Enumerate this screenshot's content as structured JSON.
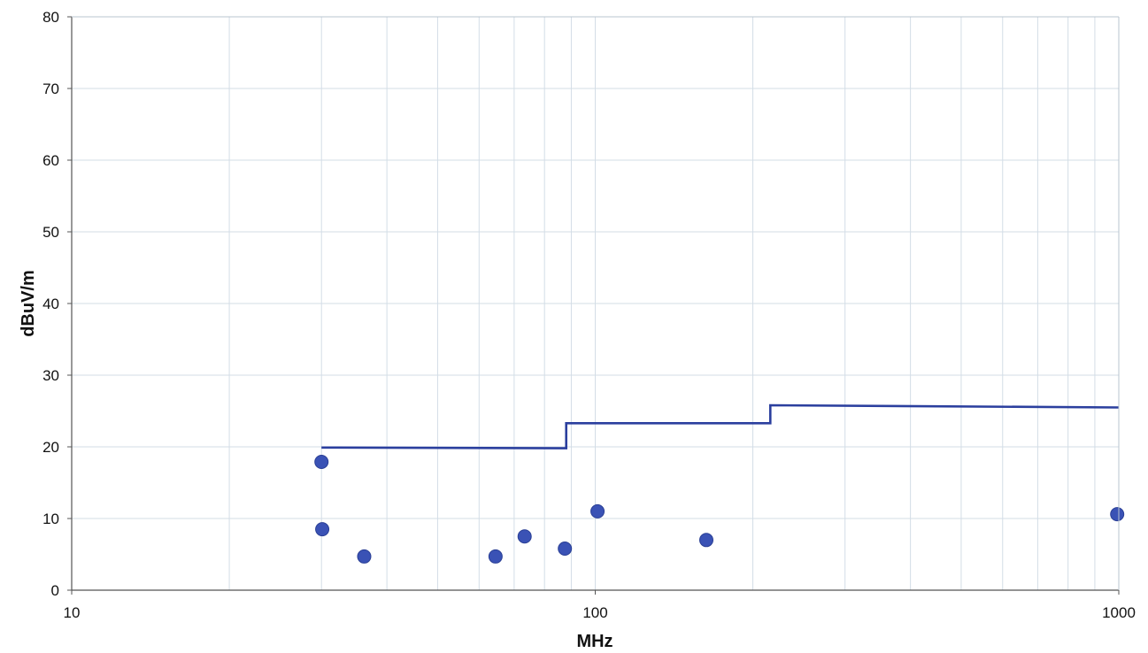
{
  "chart_data": {
    "type": "scatter",
    "title": "",
    "xlabel": "MHz",
    "ylabel": "dBuV/m",
    "xscale": "log",
    "xlim": [
      10,
      1000
    ],
    "ylim": [
      0,
      80
    ],
    "xticks": [
      "10",
      "100",
      "1000"
    ],
    "yticks": [
      "0",
      "10",
      "20",
      "30",
      "40",
      "50",
      "60",
      "70",
      "80"
    ],
    "grid": true,
    "legend": "none",
    "series": [
      {
        "type": "step-line",
        "color": "#2b3f9e",
        "points": [
          [
            30,
            19.9
          ],
          [
            88,
            19.8
          ],
          [
            88,
            23.3
          ],
          [
            216,
            23.3
          ],
          [
            216,
            25.8
          ],
          [
            1000,
            25.5
          ]
        ]
      },
      {
        "type": "scatter",
        "color": "#3a52b5",
        "points": [
          [
            30.0,
            17.9
          ],
          [
            30.1,
            8.5
          ],
          [
            36.2,
            4.7
          ],
          [
            64.5,
            4.7
          ],
          [
            73.3,
            7.5
          ],
          [
            87.5,
            5.8
          ],
          [
            101.0,
            11.0
          ],
          [
            163.0,
            7.0
          ],
          [
            993.0,
            10.6
          ]
        ]
      }
    ]
  }
}
